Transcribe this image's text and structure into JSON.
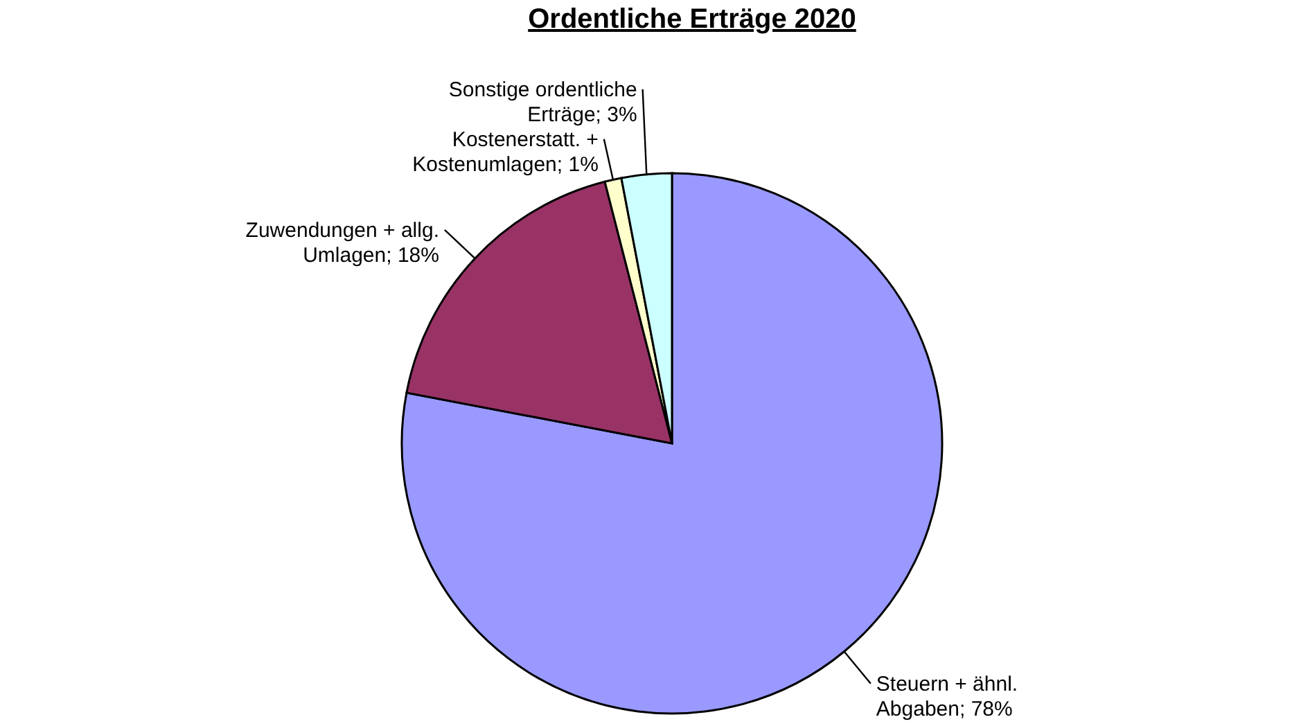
{
  "chart_data": {
    "type": "pie",
    "title": "Ordentliche Erträge 2020",
    "categories": [
      "Steuern + ähnl. Abgaben",
      "Zuwendungen + allg. Umlagen",
      "Kostenerstatt. + Kostenumlagen",
      "Sonstige ordentliche Erträge"
    ],
    "values": [
      78,
      18,
      1,
      3
    ],
    "value_labels": [
      "78%",
      "18%",
      "1%",
      "3%"
    ],
    "colors": [
      "#9999ff",
      "#993366",
      "#ffffcc",
      "#ccffff"
    ]
  }
}
